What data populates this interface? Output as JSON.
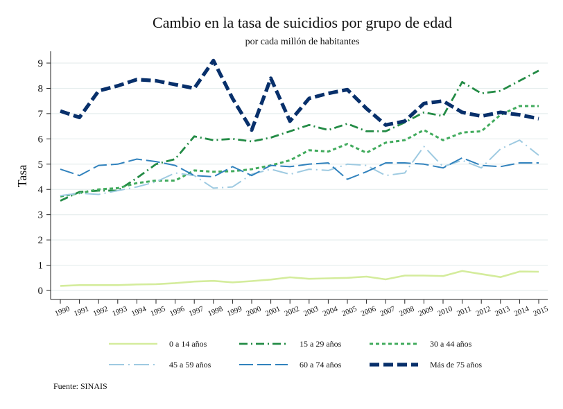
{
  "chart_data": {
    "type": "line",
    "title": "Cambio en la tasa de suicidios por grupo de edad",
    "subtitle": "por cada millón de habitantes",
    "xlabel": "",
    "ylabel": "Tasa",
    "x": [
      1990,
      1991,
      1992,
      1993,
      1994,
      1995,
      1996,
      1997,
      1998,
      1999,
      2000,
      2001,
      2002,
      2003,
      2004,
      2005,
      2006,
      2007,
      2008,
      2009,
      2010,
      2011,
      2012,
      2013,
      2014,
      2015
    ],
    "x_tick_labels": [
      "1990",
      "1991",
      "1992",
      "1993",
      "1994",
      "1995",
      "1996",
      "1997",
      "1998",
      "1999",
      "2000",
      "2001",
      "2002",
      "2003",
      "2004",
      "2005",
      "2006",
      "2007",
      "2008",
      "2009",
      "2010",
      "2011",
      "2012",
      "2013",
      "2014",
      "2015"
    ],
    "y_tick_labels": [
      "0",
      "1",
      "2",
      "3",
      "4",
      "5",
      "6",
      "7",
      "8",
      "9"
    ],
    "y_ticks": [
      0,
      1,
      2,
      3,
      4,
      5,
      6,
      7,
      8,
      9
    ],
    "ylim": [
      -0.3,
      9.4
    ],
    "xlim": [
      1989.5,
      2015.5
    ],
    "grid": true,
    "legend_position": "bottom",
    "series": [
      {
        "name": "0 a 14 años",
        "color": "#d4ec9c",
        "style": "solid",
        "values": [
          0.18,
          0.21,
          0.21,
          0.21,
          0.24,
          0.25,
          0.29,
          0.35,
          0.38,
          0.32,
          0.37,
          0.43,
          0.52,
          0.46,
          0.48,
          0.5,
          0.55,
          0.44,
          0.59,
          0.59,
          0.57,
          0.77,
          0.65,
          0.53,
          0.75,
          0.74
        ]
      },
      {
        "name": "15 a 29 años",
        "color": "#238b45",
        "style": "dashdot",
        "values": [
          3.55,
          3.9,
          3.95,
          3.95,
          4.45,
          5.0,
          5.2,
          6.1,
          5.95,
          6.0,
          5.9,
          6.05,
          6.3,
          6.55,
          6.35,
          6.6,
          6.3,
          6.3,
          6.65,
          7.05,
          6.9,
          8.25,
          7.8,
          7.9,
          8.3,
          8.7
        ]
      },
      {
        "name": "30 a 44 años",
        "color": "#41ab5d",
        "style": "dotted",
        "values": [
          3.72,
          3.85,
          4.0,
          4.05,
          4.25,
          4.35,
          4.35,
          4.75,
          4.7,
          4.72,
          4.8,
          4.95,
          5.15,
          5.55,
          5.5,
          5.8,
          5.45,
          5.85,
          5.95,
          6.35,
          5.95,
          6.25,
          6.3,
          6.95,
          7.3,
          7.3
        ]
      },
      {
        "name": "45 a 59 años",
        "color": "#9ecae1",
        "style": "longdashdot",
        "values": [
          3.75,
          3.85,
          3.8,
          3.95,
          4.1,
          4.3,
          4.65,
          4.55,
          4.05,
          4.1,
          4.6,
          4.8,
          4.6,
          4.8,
          4.75,
          5.0,
          4.95,
          4.55,
          4.65,
          5.7,
          4.9,
          5.15,
          4.85,
          5.6,
          5.95,
          5.35
        ]
      },
      {
        "name": "60 a 74 años",
        "color": "#3182bd",
        "style": "longdash",
        "values": [
          4.8,
          4.55,
          4.95,
          5.0,
          5.2,
          5.1,
          4.95,
          4.55,
          4.5,
          4.9,
          4.55,
          4.95,
          4.9,
          5.0,
          5.05,
          4.4,
          4.7,
          5.05,
          5.05,
          5.0,
          4.85,
          5.25,
          4.95,
          4.9,
          5.05,
          5.05
        ]
      },
      {
        "name": "Más de 75 años",
        "color": "#08306b",
        "style": "heavydash",
        "values": [
          7.1,
          6.85,
          7.9,
          8.1,
          8.35,
          8.3,
          8.15,
          8.0,
          9.1,
          7.6,
          6.35,
          8.4,
          6.7,
          7.6,
          7.8,
          7.95,
          7.2,
          6.55,
          6.7,
          7.4,
          7.5,
          7.05,
          6.9,
          7.05,
          6.95,
          6.8
        ]
      }
    ],
    "note": "Fuente: SINAIS"
  }
}
